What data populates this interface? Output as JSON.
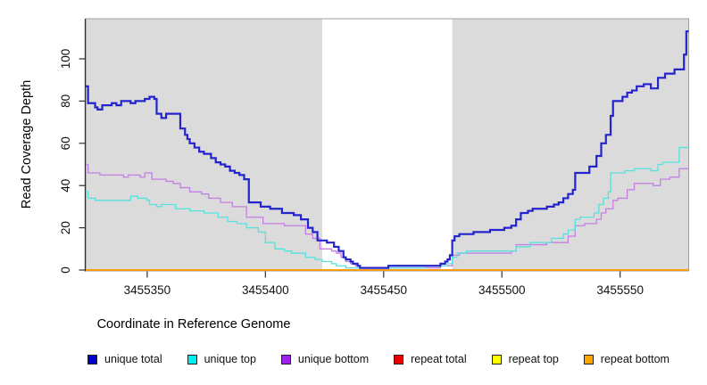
{
  "figure": {
    "background": "#ffffff",
    "panel": {
      "fill": "#dbdbdb",
      "border_color": "#a0a0a0",
      "axis_color": "#2f2f2f",
      "highlight_region": {
        "x_start": 3455424,
        "x_end": 3455479,
        "fill": "#ffffff"
      }
    }
  },
  "chart_data": {
    "type": "line",
    "subtype": "step",
    "title": "",
    "xlabel": "Coordinate in Reference Genome",
    "ylabel": "Read Coverage Depth",
    "xlim": [
      3455324,
      3455579
    ],
    "ylim": [
      0,
      119
    ],
    "x_ticks": [
      3455350,
      3455400,
      3455450,
      3455500,
      3455550
    ],
    "y_ticks": [
      0,
      20,
      40,
      60,
      80,
      100
    ],
    "grid": false,
    "legend_position": "bottom",
    "draw_order": [
      "repeat total",
      "repeat top",
      "repeat bottom",
      "unique bottom",
      "unique top",
      "unique total"
    ],
    "series": [
      {
        "name": "unique total",
        "color": "#2424cd",
        "legend_fill": "#0000cd",
        "line_width": 2.2,
        "points": [
          [
            3455324,
            87
          ],
          [
            3455325,
            79
          ],
          [
            3455328,
            77
          ],
          [
            3455329,
            76
          ],
          [
            3455331,
            78
          ],
          [
            3455335,
            79
          ],
          [
            3455337,
            78
          ],
          [
            3455339,
            80
          ],
          [
            3455343,
            79
          ],
          [
            3455345,
            80
          ],
          [
            3455349,
            81
          ],
          [
            3455351,
            82
          ],
          [
            3455353,
            81
          ],
          [
            3455354,
            74
          ],
          [
            3455356,
            72
          ],
          [
            3455358,
            74
          ],
          [
            3455364,
            67
          ],
          [
            3455366,
            64
          ],
          [
            3455367,
            62
          ],
          [
            3455368,
            60
          ],
          [
            3455370,
            58
          ],
          [
            3455372,
            56
          ],
          [
            3455374,
            55
          ],
          [
            3455377,
            53
          ],
          [
            3455379,
            51
          ],
          [
            3455381,
            50
          ],
          [
            3455383,
            49
          ],
          [
            3455385,
            47
          ],
          [
            3455387,
            46
          ],
          [
            3455389,
            45
          ],
          [
            3455391,
            43
          ],
          [
            3455393,
            32
          ],
          [
            3455398,
            30
          ],
          [
            3455402,
            29
          ],
          [
            3455407,
            27
          ],
          [
            3455412,
            26
          ],
          [
            3455415,
            24
          ],
          [
            3455418,
            20
          ],
          [
            3455420,
            18
          ],
          [
            3455422,
            14
          ],
          [
            3455426,
            13
          ],
          [
            3455429,
            11
          ],
          [
            3455431,
            9
          ],
          [
            3455433,
            6
          ],
          [
            3455434,
            5
          ],
          [
            3455436,
            4
          ],
          [
            3455437,
            3
          ],
          [
            3455439,
            2
          ],
          [
            3455440,
            1
          ],
          [
            3455450,
            1
          ],
          [
            3455452,
            2
          ],
          [
            3455472,
            2
          ],
          [
            3455474,
            3
          ],
          [
            3455476,
            4
          ],
          [
            3455477,
            5
          ],
          [
            3455478,
            7
          ],
          [
            3455479,
            14
          ],
          [
            3455480,
            16
          ],
          [
            3455482,
            17
          ],
          [
            3455488,
            18
          ],
          [
            3455495,
            19
          ],
          [
            3455501,
            20
          ],
          [
            3455504,
            21
          ],
          [
            3455506,
            24
          ],
          [
            3455508,
            27
          ],
          [
            3455511,
            28
          ],
          [
            3455513,
            29
          ],
          [
            3455519,
            30
          ],
          [
            3455522,
            31
          ],
          [
            3455524,
            32
          ],
          [
            3455526,
            34
          ],
          [
            3455528,
            36
          ],
          [
            3455530,
            38
          ],
          [
            3455531,
            46
          ],
          [
            3455537,
            49
          ],
          [
            3455540,
            54
          ],
          [
            3455542,
            60
          ],
          [
            3455544,
            64
          ],
          [
            3455546,
            73
          ],
          [
            3455547,
            80
          ],
          [
            3455551,
            82
          ],
          [
            3455553,
            84
          ],
          [
            3455555,
            85
          ],
          [
            3455557,
            87
          ],
          [
            3455560,
            88
          ],
          [
            3455563,
            86
          ],
          [
            3455566,
            91
          ],
          [
            3455569,
            93
          ],
          [
            3455573,
            95
          ],
          [
            3455577,
            102
          ],
          [
            3455578,
            113
          ]
        ]
      },
      {
        "name": "unique top",
        "color": "#55e2de",
        "legend_fill": "#00eeee",
        "line_width": 1.3,
        "points": [
          [
            3455324,
            37
          ],
          [
            3455325,
            34
          ],
          [
            3455328,
            33
          ],
          [
            3455343,
            35
          ],
          [
            3455346,
            34
          ],
          [
            3455350,
            33
          ],
          [
            3455351,
            31
          ],
          [
            3455354,
            30
          ],
          [
            3455356,
            31
          ],
          [
            3455362,
            29
          ],
          [
            3455368,
            28
          ],
          [
            3455374,
            27
          ],
          [
            3455380,
            25
          ],
          [
            3455384,
            23
          ],
          [
            3455388,
            22
          ],
          [
            3455392,
            20
          ],
          [
            3455397,
            18
          ],
          [
            3455400,
            13
          ],
          [
            3455404,
            10
          ],
          [
            3455408,
            9
          ],
          [
            3455411,
            8
          ],
          [
            3455417,
            6
          ],
          [
            3455421,
            5
          ],
          [
            3455424,
            4
          ],
          [
            3455428,
            3
          ],
          [
            3455430,
            2
          ],
          [
            3455434,
            1
          ],
          [
            3455452,
            1
          ],
          [
            3455468,
            2
          ],
          [
            3455477,
            3
          ],
          [
            3455479,
            6
          ],
          [
            3455481,
            8
          ],
          [
            3455485,
            9
          ],
          [
            3455506,
            11
          ],
          [
            3455512,
            13
          ],
          [
            3455521,
            15
          ],
          [
            3455526,
            17
          ],
          [
            3455528,
            19
          ],
          [
            3455531,
            24
          ],
          [
            3455533,
            25
          ],
          [
            3455539,
            27
          ],
          [
            3455541,
            31
          ],
          [
            3455543,
            34
          ],
          [
            3455545,
            37
          ],
          [
            3455546,
            46
          ],
          [
            3455552,
            47
          ],
          [
            3455556,
            48
          ],
          [
            3455563,
            47
          ],
          [
            3455566,
            50
          ],
          [
            3455568,
            51
          ],
          [
            3455575,
            58
          ]
        ]
      },
      {
        "name": "unique bottom",
        "color": "#c47fe2",
        "legend_fill": "#a020f0",
        "line_width": 1.3,
        "points": [
          [
            3455324,
            50
          ],
          [
            3455325,
            46
          ],
          [
            3455330,
            45
          ],
          [
            3455340,
            44
          ],
          [
            3455342,
            45
          ],
          [
            3455347,
            44
          ],
          [
            3455349,
            46
          ],
          [
            3455352,
            43
          ],
          [
            3455358,
            42
          ],
          [
            3455361,
            41
          ],
          [
            3455364,
            39
          ],
          [
            3455368,
            37
          ],
          [
            3455373,
            36
          ],
          [
            3455376,
            34
          ],
          [
            3455381,
            32
          ],
          [
            3455386,
            30
          ],
          [
            3455392,
            25
          ],
          [
            3455399,
            22
          ],
          [
            3455408,
            21
          ],
          [
            3455417,
            17
          ],
          [
            3455420,
            15
          ],
          [
            3455423,
            10
          ],
          [
            3455428,
            9
          ],
          [
            3455430,
            8
          ],
          [
            3455432,
            6
          ],
          [
            3455434,
            4
          ],
          [
            3455436,
            3
          ],
          [
            3455438,
            2
          ],
          [
            3455440,
            1
          ],
          [
            3455472,
            1
          ],
          [
            3455474,
            2
          ],
          [
            3455479,
            7
          ],
          [
            3455482,
            8
          ],
          [
            3455504,
            9
          ],
          [
            3455506,
            12
          ],
          [
            3455519,
            13
          ],
          [
            3455528,
            16
          ],
          [
            3455531,
            21
          ],
          [
            3455535,
            22
          ],
          [
            3455540,
            24
          ],
          [
            3455542,
            27
          ],
          [
            3455544,
            29
          ],
          [
            3455547,
            33
          ],
          [
            3455549,
            34
          ],
          [
            3455553,
            38
          ],
          [
            3455556,
            41
          ],
          [
            3455564,
            40
          ],
          [
            3455567,
            43
          ],
          [
            3455571,
            44
          ],
          [
            3455575,
            48
          ]
        ]
      },
      {
        "name": "repeat total",
        "color": "#dd0000",
        "legend_fill": "#ee0000",
        "line_width": 1.3,
        "points": [
          [
            3455324,
            0
          ],
          [
            3455579,
            0
          ]
        ]
      },
      {
        "name": "repeat top",
        "color": "#ffff00",
        "legend_fill": "#ffff00",
        "line_width": 1.3,
        "points": [
          [
            3455324,
            0
          ],
          [
            3455579,
            0
          ]
        ]
      },
      {
        "name": "repeat bottom",
        "color": "#ff9900",
        "legend_fill": "#ffa500",
        "line_width": 1.8,
        "points": [
          [
            3455324,
            0
          ],
          [
            3455579,
            0
          ]
        ]
      }
    ]
  }
}
